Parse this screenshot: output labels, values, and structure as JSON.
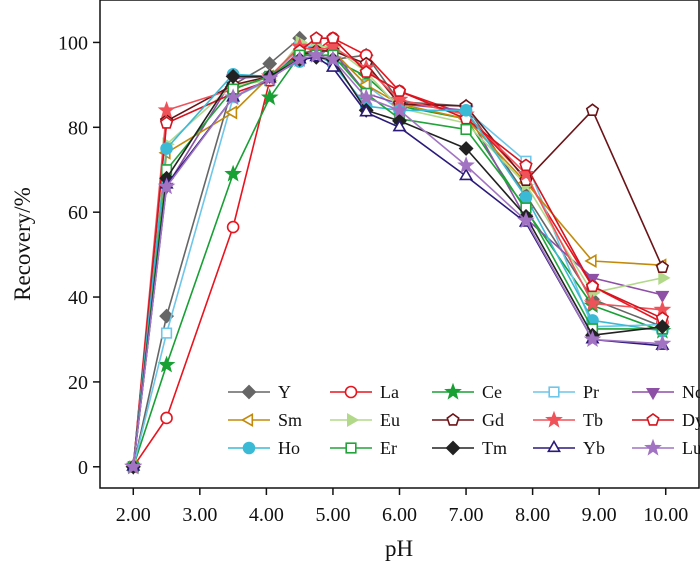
{
  "chart_data": {
    "type": "line",
    "title": "",
    "xlabel": "pH",
    "ylabel": "Recovery/%",
    "xlim": [
      1.5,
      10.5
    ],
    "ylim": [
      -5,
      110
    ],
    "xticks": [
      2,
      3,
      4,
      5,
      6,
      7,
      8,
      9,
      10
    ],
    "xtick_labels": [
      "2.00",
      "3.00",
      "4.00",
      "5.00",
      "6.00",
      "7.00",
      "8.00",
      "9.00",
      "10.00"
    ],
    "yticks": [
      0,
      20,
      40,
      60,
      80,
      100
    ],
    "ytick_labels": [
      "0",
      "20",
      "40",
      "60",
      "80",
      "100"
    ],
    "grid": false,
    "legend_position": "bottom-right",
    "x": [
      2.0,
      2.5,
      3.5,
      4.05,
      4.5,
      4.75,
      5.0,
      5.5,
      6.0,
      7.0,
      7.9,
      8.9,
      9.95
    ],
    "series": [
      {
        "name": "Y",
        "color": "#666666",
        "marker": "diamond",
        "filled": true,
        "values": [
          0,
          35.5,
          90,
          95,
          101,
          97,
          96,
          97,
          86,
          85,
          64,
          39.5,
          33
        ]
      },
      {
        "name": "La",
        "color": "#e8141e",
        "marker": "circle",
        "filled": false,
        "values": [
          0,
          11.5,
          56.5,
          91,
          97.5,
          98,
          101,
          97,
          88.5,
          83,
          68,
          42.5,
          34
        ]
      },
      {
        "name": "Ce",
        "color": "#18a035",
        "marker": "star",
        "filled": true,
        "values": [
          0,
          24,
          69,
          87,
          97,
          97,
          96,
          92,
          85,
          82,
          60.5,
          38,
          32
        ]
      },
      {
        "name": "Pr",
        "color": "#6ec6e8",
        "marker": "square",
        "filled": false,
        "values": [
          0,
          31.5,
          87,
          91,
          99,
          99,
          98,
          90,
          84,
          84,
          72,
          33,
          33.5
        ]
      },
      {
        "name": "Nd",
        "color": "#8e4fa6",
        "marker": "triangle-down",
        "filled": true,
        "values": [
          0,
          66,
          91.5,
          92,
          96.5,
          98,
          98,
          88,
          85.5,
          84,
          58.5,
          44.5,
          40.5
        ]
      },
      {
        "name": "Sm",
        "color": "#c38a0a",
        "marker": "triangle-left",
        "filled": false,
        "values": [
          0,
          74,
          83.5,
          92,
          97,
          98,
          98,
          90,
          85.5,
          82,
          67,
          48.5,
          47.5
        ]
      },
      {
        "name": "Eu",
        "color": "#b2d98a",
        "marker": "triangle-right",
        "filled": true,
        "values": [
          0,
          76,
          90,
          91,
          100,
          99,
          99,
          93,
          84.5,
          81,
          66.5,
          41,
          44.5
        ]
      },
      {
        "name": "Gd",
        "color": "#6b1418",
        "marker": "pentagon",
        "filled": false,
        "values": [
          0,
          81.5,
          90,
          92,
          97,
          98,
          98,
          95,
          85.5,
          85,
          67.5,
          84,
          47
        ]
      },
      {
        "name": "Tb",
        "color": "#f0525a",
        "marker": "star",
        "filled": true,
        "values": [
          0,
          84,
          89,
          92,
          99,
          98,
          99,
          94,
          86.5,
          83,
          69,
          38.5,
          37
        ]
      },
      {
        "name": "Dy",
        "color": "#d4141e",
        "marker": "pentagon",
        "filled": false,
        "values": [
          0,
          81,
          88,
          91,
          98,
          101,
          101,
          93,
          88.5,
          82,
          71,
          42.5,
          35
        ]
      },
      {
        "name": "Ho",
        "color": "#3bbad6",
        "marker": "circle",
        "filled": true,
        "values": [
          0,
          75,
          92.5,
          92,
          95.5,
          97,
          95,
          85,
          84,
          84,
          63.5,
          34.5,
          32
        ]
      },
      {
        "name": "Er",
        "color": "#22a43a",
        "marker": "square",
        "filled": false,
        "values": [
          0,
          70,
          89,
          92,
          97,
          97,
          97,
          88,
          82,
          79.5,
          61,
          32.5,
          32.5
        ]
      },
      {
        "name": "Tm",
        "color": "#222222",
        "marker": "diamond",
        "filled": true,
        "values": [
          0,
          68,
          92,
          92,
          96,
          96.5,
          96,
          84,
          81.5,
          75,
          59,
          31,
          33
        ]
      },
      {
        "name": "Yb",
        "color": "#2b1a7a",
        "marker": "triangle-up",
        "filled": false,
        "values": [
          0,
          66.5,
          87,
          91.5,
          96,
          96.5,
          94,
          83.5,
          80,
          68.5,
          57.5,
          30,
          28.5
        ]
      },
      {
        "name": "Lu",
        "color": "#a173c2",
        "marker": "star",
        "filled": true,
        "values": [
          0,
          66,
          87,
          91.5,
          96,
          97,
          96,
          87,
          84,
          71,
          58,
          30,
          29
        ]
      }
    ]
  }
}
